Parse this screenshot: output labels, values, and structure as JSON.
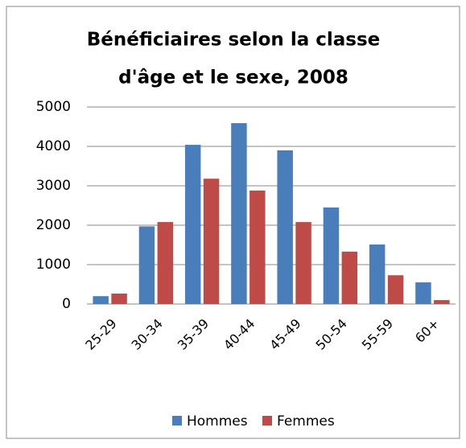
{
  "chart_data": {
    "type": "bar",
    "title": [
      "Bénéficiaires selon la classe",
      "d'âge et le sexe, 2008"
    ],
    "categories": [
      "25-29",
      "30-34",
      "35-39",
      "40-44",
      "45-49",
      "50-54",
      "55-59",
      "60+"
    ],
    "series": [
      {
        "name": "Hommes",
        "color": "#4a7ebb",
        "values": [
          200,
          1970,
          4040,
          4590,
          3900,
          2450,
          1510,
          550
        ]
      },
      {
        "name": "Femmes",
        "color": "#be4b48",
        "values": [
          265,
          2080,
          3180,
          2880,
          2080,
          1330,
          730,
          100
        ]
      }
    ],
    "ylim": [
      0,
      5000
    ],
    "yticks": [
      0,
      1000,
      2000,
      3000,
      4000,
      5000
    ],
    "grid": true,
    "legend": "bottom"
  }
}
